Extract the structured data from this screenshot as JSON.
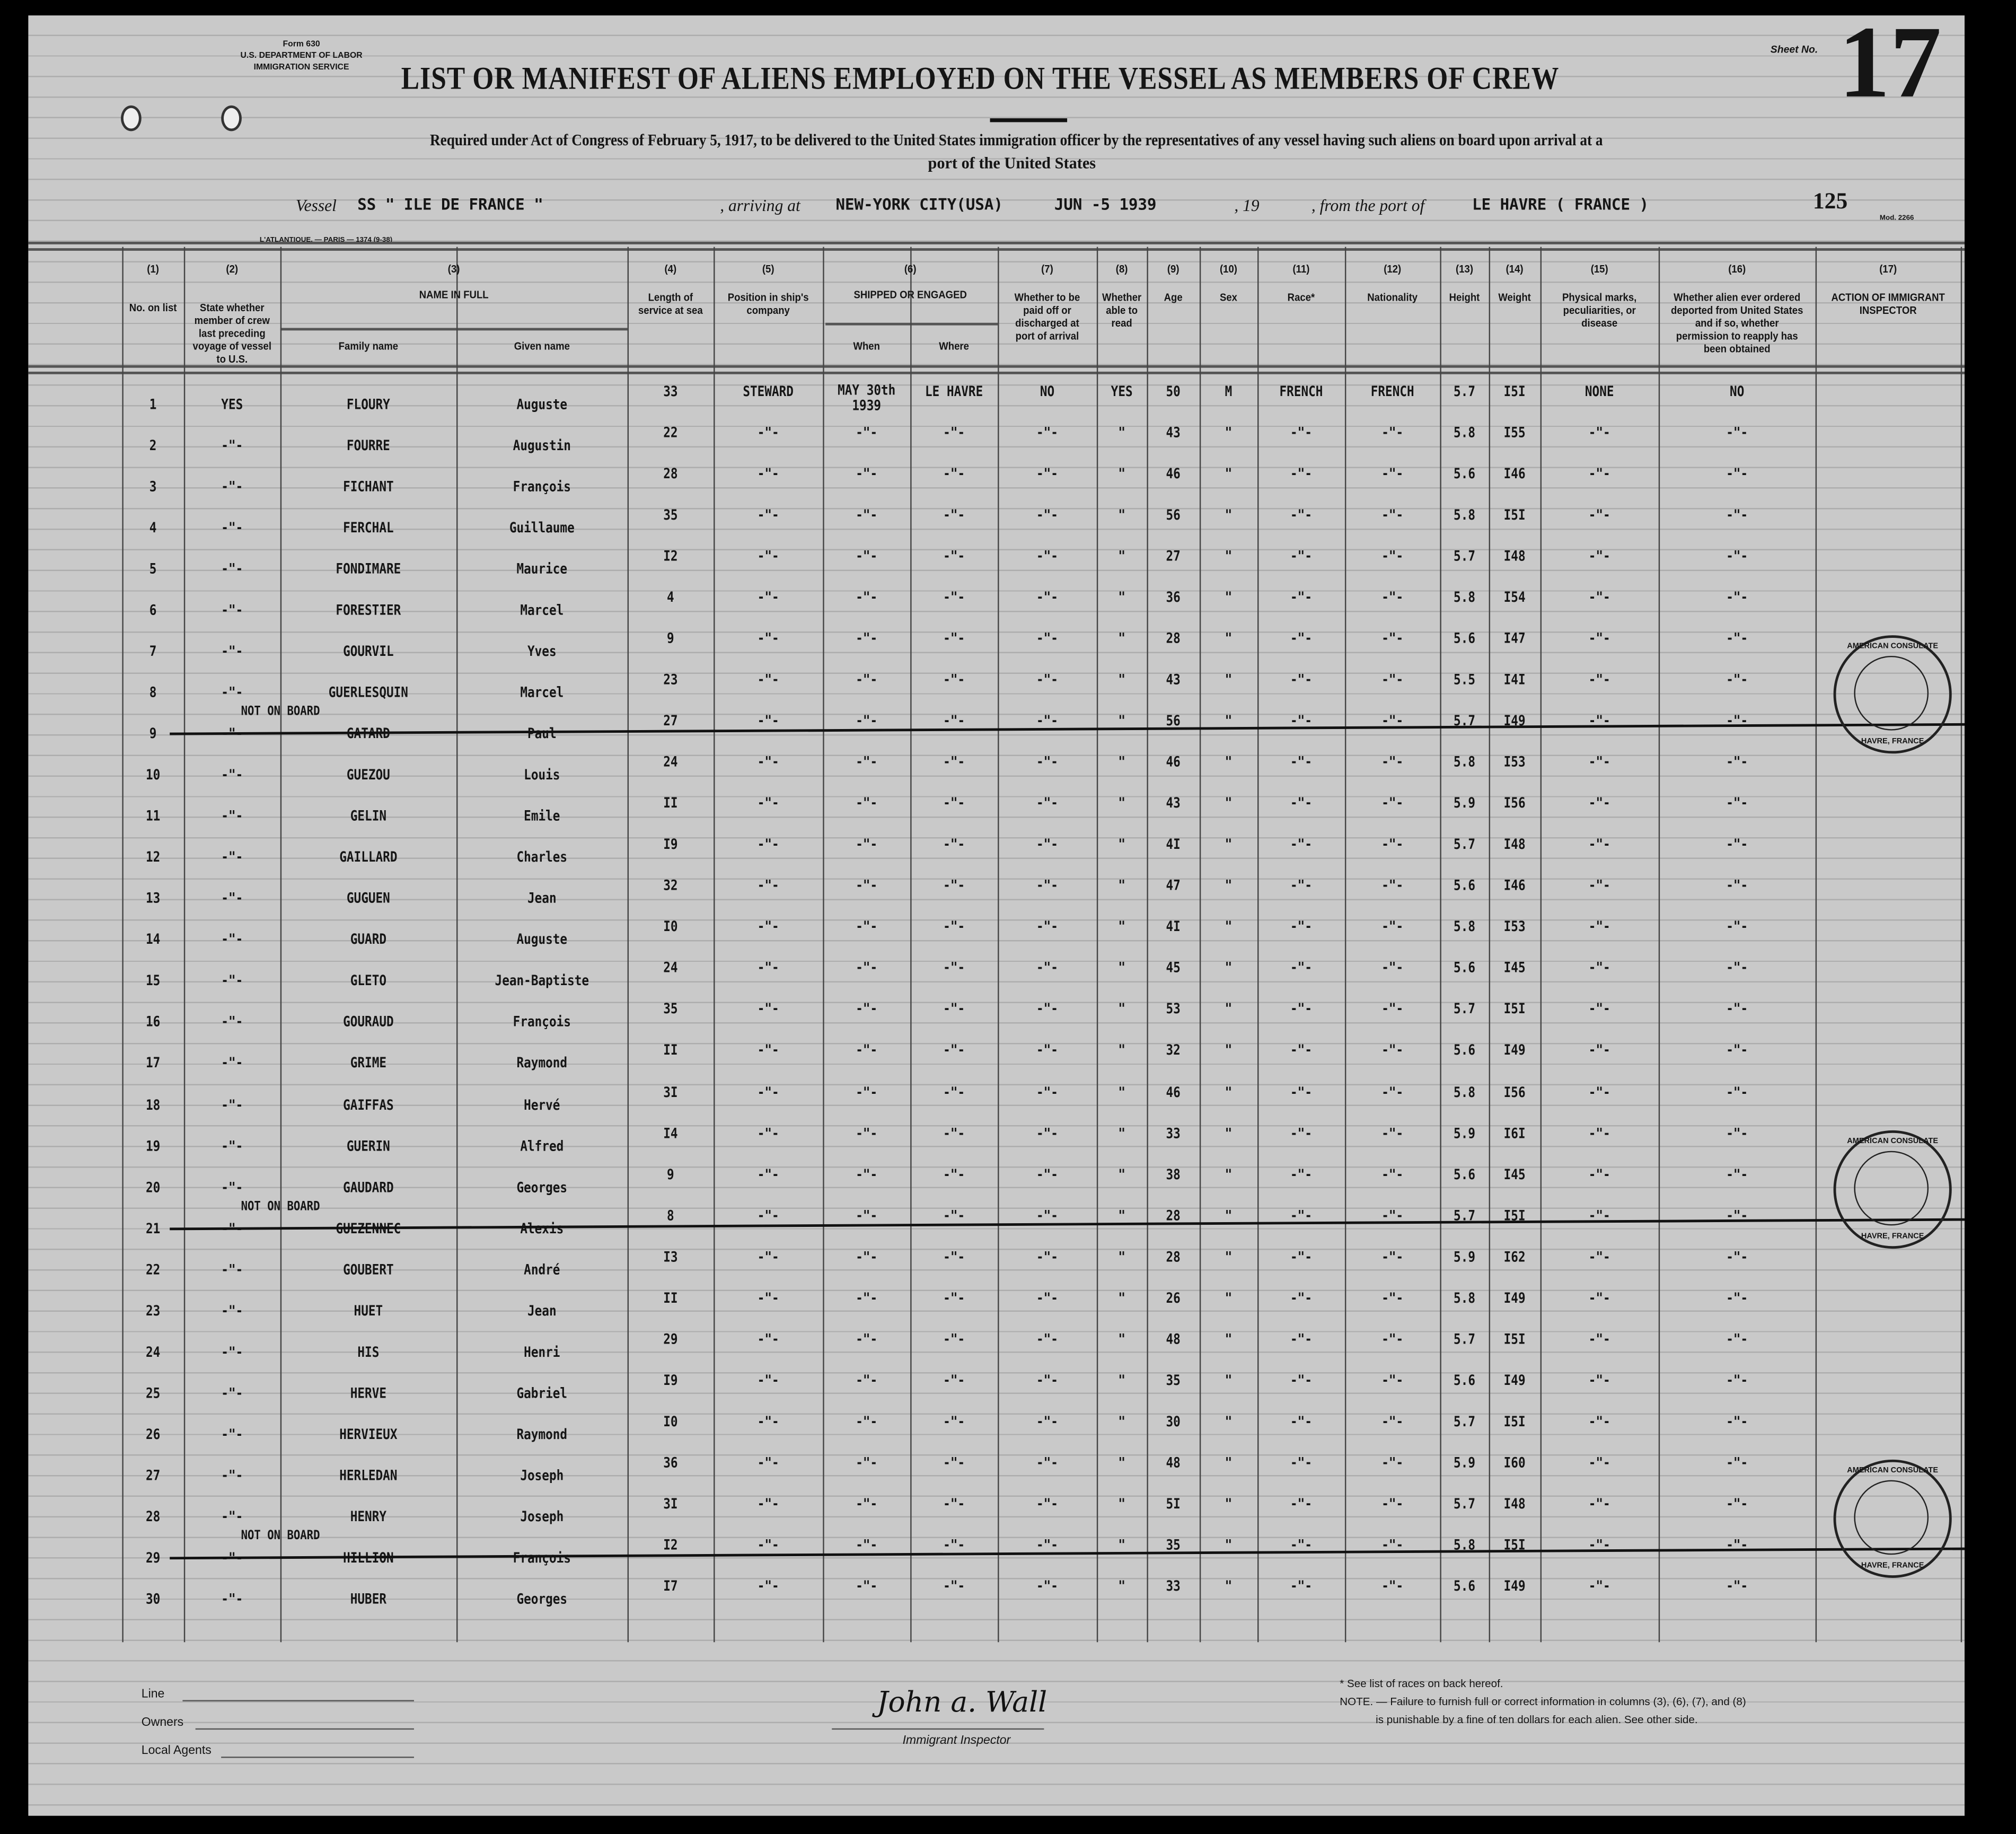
{
  "form": {
    "form_no": "Form 630",
    "dept": "U.S. DEPARTMENT OF LABOR",
    "service": "IMMIGRATION SERVICE",
    "sheet_label": "Sheet No.",
    "sheet_no": "17",
    "mod": "Mod. 2266",
    "printer": "L'ATLANTIQUE. — PARIS — 1374 (9-38)"
  },
  "title": "LIST OR MANIFEST OF ALIENS EMPLOYED ON THE VESSEL AS MEMBERS OF CREW",
  "subtitle_1": "Required under Act of Congress of February 5, 1917, to be delivered to the United States immigration officer by the representatives of any vessel having such aliens on board upon arrival at a",
  "subtitle_2": "port of the United States",
  "voyage": {
    "vessel_label": "Vessel",
    "vessel": "SS \" ILE DE FRANCE \"",
    "arriving_label": ", arriving at",
    "arriving": "NEW-YORK CITY(USA)",
    "date": "JUN -5 1939",
    "year_label": ", 19",
    "from_label": ", from the port of",
    "port": "LE HAVRE ( FRANCE )",
    "number": "125"
  },
  "columns": [
    {
      "num": "(1)",
      "label": "No. on list"
    },
    {
      "num": "(2)",
      "label": "State whether member of crew last preceding voyage of vessel to U.S."
    },
    {
      "num": "(3)",
      "label": "NAME IN FULL",
      "sub": [
        "Family name",
        "Given name"
      ]
    },
    {
      "num": "(4)",
      "label": "Length of service at sea"
    },
    {
      "num": "(5)",
      "label": "Position in ship's company"
    },
    {
      "num": "(6)",
      "label": "SHIPPED OR ENGAGED",
      "sub": [
        "When",
        "Where"
      ]
    },
    {
      "num": "(7)",
      "label": "Whether to be paid off or discharged at port of arrival"
    },
    {
      "num": "(8)",
      "label": "Whether able to read"
    },
    {
      "num": "(9)",
      "label": "Age"
    },
    {
      "num": "(10)",
      "label": "Sex"
    },
    {
      "num": "(11)",
      "label": "Race*"
    },
    {
      "num": "(12)",
      "label": "Nationality"
    },
    {
      "num": "(13)",
      "label": "Height"
    },
    {
      "num": "(14)",
      "label": "Weight"
    },
    {
      "num": "(15)",
      "label": "Physical marks, peculiarities, or disease"
    },
    {
      "num": "(16)",
      "label": "Whether alien ever ordered deported from United States and if so, whether permission to reapply has been obtained"
    },
    {
      "num": "(17)",
      "label": "ACTION OF IMMIGRANT INSPECTOR"
    }
  ],
  "rows": [
    [
      "1",
      "YES",
      "FLOURY",
      "Auguste",
      "33",
      "STEWARD",
      "MAY 30th 1939",
      "LE HAVRE",
      "NO",
      "YES",
      "50",
      "M",
      "FRENCH",
      "FRENCH",
      "5.7",
      "I5I",
      "NONE",
      "NO"
    ],
    [
      "2",
      "-\"-",
      "FOURRE",
      "Augustin",
      "22",
      "-\"-",
      "-\"-",
      "-\"-",
      "-\"-",
      "\"",
      "43",
      "\"",
      "-\"-",
      "-\"-",
      "5.8",
      "I55",
      "-\"-",
      "-\"-"
    ],
    [
      "3",
      "-\"-",
      "FICHANT",
      "François",
      "28",
      "-\"-",
      "-\"-",
      "-\"-",
      "-\"-",
      "\"",
      "46",
      "\"",
      "-\"-",
      "-\"-",
      "5.6",
      "I46",
      "-\"-",
      "-\"-"
    ],
    [
      "4",
      "-\"-",
      "FERCHAL",
      "Guillaume",
      "35",
      "-\"-",
      "-\"-",
      "-\"-",
      "-\"-",
      "\"",
      "56",
      "\"",
      "-\"-",
      "-\"-",
      "5.8",
      "I5I",
      "-\"-",
      "-\"-"
    ],
    [
      "5",
      "-\"-",
      "FONDIMARE",
      "Maurice",
      "I2",
      "-\"-",
      "-\"-",
      "-\"-",
      "-\"-",
      "\"",
      "27",
      "\"",
      "-\"-",
      "-\"-",
      "5.7",
      "I48",
      "-\"-",
      "-\"-"
    ],
    [
      "6",
      "-\"-",
      "FORESTIER",
      "Marcel",
      "4",
      "-\"-",
      "-\"-",
      "-\"-",
      "-\"-",
      "\"",
      "36",
      "\"",
      "-\"-",
      "-\"-",
      "5.8",
      "I54",
      "-\"-",
      "-\"-"
    ],
    [
      "7",
      "-\"-",
      "GOURVIL",
      "Yves",
      "9",
      "-\"-",
      "-\"-",
      "-\"-",
      "-\"-",
      "\"",
      "28",
      "\"",
      "-\"-",
      "-\"-",
      "5.6",
      "I47",
      "-\"-",
      "-\"-"
    ],
    [
      "8",
      "-\"-",
      "GUERLESQUIN",
      "Marcel",
      "23",
      "-\"-",
      "-\"-",
      "-\"-",
      "-\"-",
      "\"",
      "43",
      "\"",
      "-\"-",
      "-\"-",
      "5.5",
      "I4I",
      "-\"-",
      "-\"-"
    ],
    [
      "9",
      "-\"-",
      "GATARD",
      "Paul",
      "27",
      "-\"-",
      "-\"-",
      "-\"-",
      "-\"-",
      "\"",
      "56",
      "\"",
      "-\"-",
      "-\"-",
      "5.7",
      "I49",
      "-\"-",
      "-\"-"
    ],
    [
      "10",
      "-\"-",
      "GUEZOU",
      "Louis",
      "24",
      "-\"-",
      "-\"-",
      "-\"-",
      "-\"-",
      "\"",
      "46",
      "\"",
      "-\"-",
      "-\"-",
      "5.8",
      "I53",
      "-\"-",
      "-\"-"
    ],
    [
      "11",
      "-\"-",
      "GELIN",
      "Emile",
      "II",
      "-\"-",
      "-\"-",
      "-\"-",
      "-\"-",
      "\"",
      "43",
      "\"",
      "-\"-",
      "-\"-",
      "5.9",
      "I56",
      "-\"-",
      "-\"-"
    ],
    [
      "12",
      "-\"-",
      "GAILLARD",
      "Charles",
      "I9",
      "-\"-",
      "-\"-",
      "-\"-",
      "-\"-",
      "\"",
      "4I",
      "\"",
      "-\"-",
      "-\"-",
      "5.7",
      "I48",
      "-\"-",
      "-\"-"
    ],
    [
      "13",
      "-\"-",
      "GUGUEN",
      "Jean",
      "32",
      "-\"-",
      "-\"-",
      "-\"-",
      "-\"-",
      "\"",
      "47",
      "\"",
      "-\"-",
      "-\"-",
      "5.6",
      "I46",
      "-\"-",
      "-\"-"
    ],
    [
      "14",
      "-\"-",
      "GUARD",
      "Auguste",
      "I0",
      "-\"-",
      "-\"-",
      "-\"-",
      "-\"-",
      "\"",
      "4I",
      "\"",
      "-\"-",
      "-\"-",
      "5.8",
      "I53",
      "-\"-",
      "-\"-"
    ],
    [
      "15",
      "-\"-",
      "GLETO",
      "Jean-Baptiste",
      "24",
      "-\"-",
      "-\"-",
      "-\"-",
      "-\"-",
      "\"",
      "45",
      "\"",
      "-\"-",
      "-\"-",
      "5.6",
      "I45",
      "-\"-",
      "-\"-"
    ],
    [
      "16",
      "-\"-",
      "GOURAUD",
      "François",
      "35",
      "-\"-",
      "-\"-",
      "-\"-",
      "-\"-",
      "\"",
      "53",
      "\"",
      "-\"-",
      "-\"-",
      "5.7",
      "I5I",
      "-\"-",
      "-\"-"
    ],
    [
      "17",
      "-\"-",
      "GRIME",
      "Raymond",
      "II",
      "-\"-",
      "-\"-",
      "-\"-",
      "-\"-",
      "\"",
      "32",
      "\"",
      "-\"-",
      "-\"-",
      "5.6",
      "I49",
      "-\"-",
      "-\"-"
    ],
    [
      "18",
      "-\"-",
      "GAIFFAS",
      "Hervé",
      "3I",
      "-\"-",
      "-\"-",
      "-\"-",
      "-\"-",
      "\"",
      "46",
      "\"",
      "-\"-",
      "-\"-",
      "5.8",
      "I56",
      "-\"-",
      "-\"-"
    ],
    [
      "19",
      "-\"-",
      "GUERIN",
      "Alfred",
      "I4",
      "-\"-",
      "-\"-",
      "-\"-",
      "-\"-",
      "\"",
      "33",
      "\"",
      "-\"-",
      "-\"-",
      "5.9",
      "I6I",
      "-\"-",
      "-\"-"
    ],
    [
      "20",
      "-\"-",
      "GAUDARD",
      "Georges",
      "9",
      "-\"-",
      "-\"-",
      "-\"-",
      "-\"-",
      "\"",
      "38",
      "\"",
      "-\"-",
      "-\"-",
      "5.6",
      "I45",
      "-\"-",
      "-\"-"
    ],
    [
      "21",
      "-\"-",
      "GUEZENNEC",
      "Alexis",
      "8",
      "-\"-",
      "-\"-",
      "-\"-",
      "-\"-",
      "\"",
      "28",
      "\"",
      "-\"-",
      "-\"-",
      "5.7",
      "I5I",
      "-\"-",
      "-\"-"
    ],
    [
      "22",
      "-\"-",
      "GOUBERT",
      "André",
      "I3",
      "-\"-",
      "-\"-",
      "-\"-",
      "-\"-",
      "\"",
      "28",
      "\"",
      "-\"-",
      "-\"-",
      "5.9",
      "I62",
      "-\"-",
      "-\"-"
    ],
    [
      "23",
      "-\"-",
      "HUET",
      "Jean",
      "II",
      "-\"-",
      "-\"-",
      "-\"-",
      "-\"-",
      "\"",
      "26",
      "\"",
      "-\"-",
      "-\"-",
      "5.8",
      "I49",
      "-\"-",
      "-\"-"
    ],
    [
      "24",
      "-\"-",
      "HIS",
      "Henri",
      "29",
      "-\"-",
      "-\"-",
      "-\"-",
      "-\"-",
      "\"",
      "48",
      "\"",
      "-\"-",
      "-\"-",
      "5.7",
      "I5I",
      "-\"-",
      "-\"-"
    ],
    [
      "25",
      "-\"-",
      "HERVE",
      "Gabriel",
      "I9",
      "-\"-",
      "-\"-",
      "-\"-",
      "-\"-",
      "\"",
      "35",
      "\"",
      "-\"-",
      "-\"-",
      "5.6",
      "I49",
      "-\"-",
      "-\"-"
    ],
    [
      "26",
      "-\"-",
      "HERVIEUX",
      "Raymond",
      "I0",
      "-\"-",
      "-\"-",
      "-\"-",
      "-\"-",
      "\"",
      "30",
      "\"",
      "-\"-",
      "-\"-",
      "5.7",
      "I5I",
      "-\"-",
      "-\"-"
    ],
    [
      "27",
      "-\"-",
      "HERLEDAN",
      "Joseph",
      "36",
      "-\"-",
      "-\"-",
      "-\"-",
      "-\"-",
      "\"",
      "48",
      "\"",
      "-\"-",
      "-\"-",
      "5.9",
      "I60",
      "-\"-",
      "-\"-"
    ],
    [
      "28",
      "-\"-",
      "HENRY",
      "Joseph",
      "3I",
      "-\"-",
      "-\"-",
      "-\"-",
      "-\"-",
      "\"",
      "5I",
      "\"",
      "-\"-",
      "-\"-",
      "5.7",
      "I48",
      "-\"-",
      "-\"-"
    ],
    [
      "29",
      "-\"-",
      "HILLION",
      "François",
      "I2",
      "-\"-",
      "-\"-",
      "-\"-",
      "-\"-",
      "\"",
      "35",
      "\"",
      "-\"-",
      "-\"-",
      "5.8",
      "I5I",
      "-\"-",
      "-\"-"
    ],
    [
      "30",
      "-\"-",
      "HUBER",
      "Georges",
      "I7",
      "-\"-",
      "-\"-",
      "-\"-",
      "-\"-",
      "\"",
      "33",
      "\"",
      "-\"-",
      "-\"-",
      "5.6",
      "I49",
      "-\"-",
      "-\"-"
    ]
  ],
  "struck_rows": [
    9,
    21,
    29
  ],
  "struck_note": "NOT ON BOARD",
  "stamp": {
    "top": "AMERICAN CONSULATE",
    "bottom": "HAVRE, FRANCE",
    "rows": [
      8,
      20,
      28
    ]
  },
  "footer": {
    "line_label": "Line",
    "owners_label": "Owners",
    "agents_label": "Local Agents",
    "signature": "John a. Wall",
    "inspector_label": "Immigrant Inspector",
    "note_races": "* See list of races on back hereof.",
    "note_1": "NOTE. — Failure to furnish full or correct information in columns (3), (6), (7), and (8)",
    "note_2": "is punishable by a fine of ten dollars for each alien. See other side."
  }
}
